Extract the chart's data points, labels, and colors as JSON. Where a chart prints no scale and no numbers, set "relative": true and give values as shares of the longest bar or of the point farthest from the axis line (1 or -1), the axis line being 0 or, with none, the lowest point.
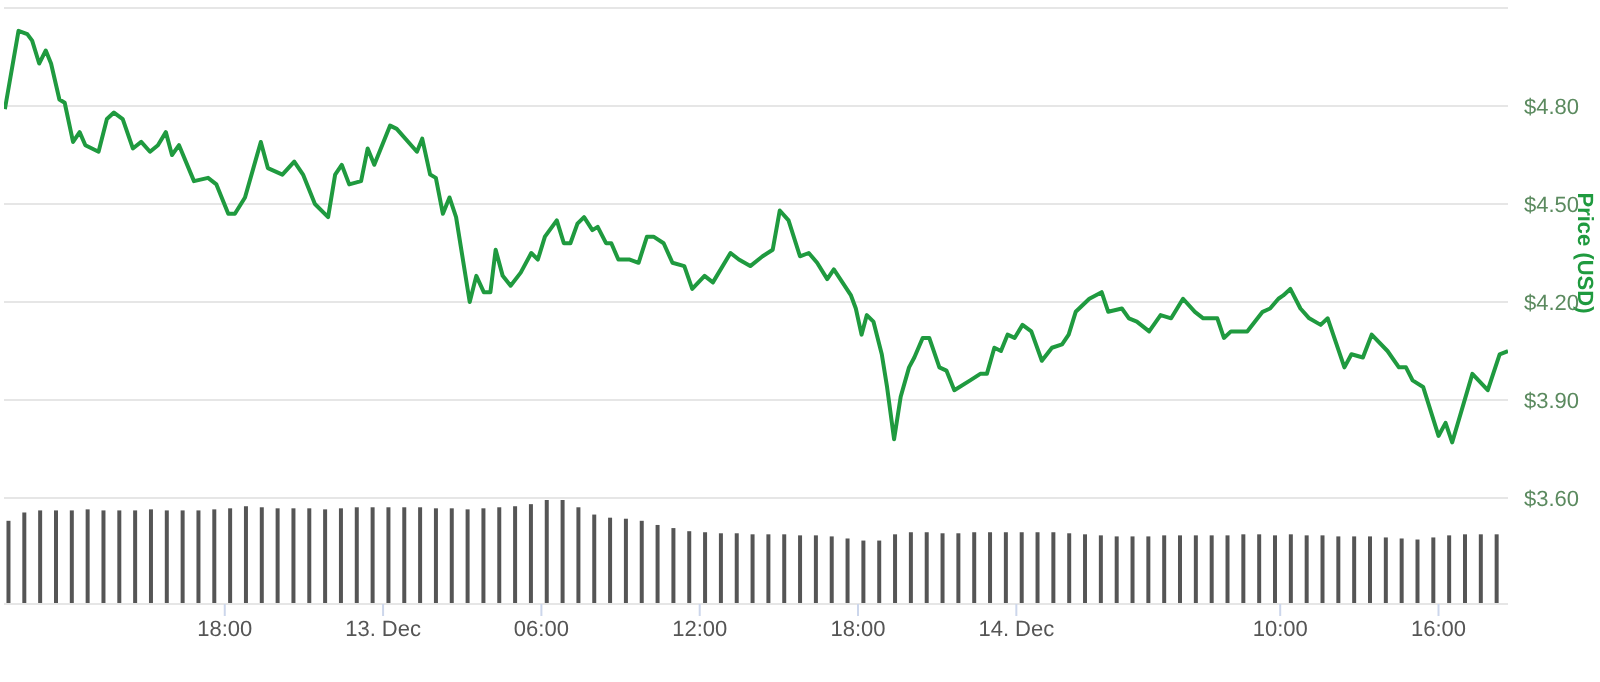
{
  "chart_data": [
    {
      "type": "line",
      "ylabel": "Price (USD)",
      "color": "#1f9a3f",
      "grid": "y",
      "tick_labels": "y",
      "xlim": [
        "--12-12T09:38",
        "--12-14T18:38"
      ],
      "ylim": [
        3.6,
        5.1
      ],
      "yticks": [
        {
          "value": 3.6,
          "label": "$3.60"
        },
        {
          "value": 3.9,
          "label": "$3.90"
        },
        {
          "value": 4.2,
          "label": "$4.20"
        },
        {
          "value": 4.5,
          "label": "$4.50"
        },
        {
          "value": 4.8,
          "label": "$4.80"
        },
        {
          "value": 5.1,
          "label": null
        }
      ],
      "x": [
        "--12-12T09:40",
        "--12-12T10:11",
        "--12-12T10:31",
        "--12-12T10:42",
        "--12-12T10:58",
        "--12-12T11:13",
        "--12-12T11:25",
        "--12-12T11:44",
        "--12-12T11:56",
        "--12-12T12:15",
        "--12-12T12:30",
        "--12-12T12:43",
        "--12-12T13:13",
        "--12-12T13:32",
        "--12-12T13:48",
        "--12-12T14:08",
        "--12-12T14:31",
        "--12-12T14:50",
        "--12-12T15:10",
        "--12-12T15:28",
        "--12-12T15:46",
        "--12-12T16:00",
        "--12-12T16:16",
        "--12-12T16:50",
        "--12-12T17:22",
        "--12-12T17:41",
        "--12-12T18:08",
        "--12-12T18:23",
        "--12-12T18:46",
        "--12-12T19:22",
        "--12-12T19:38",
        "--12-12T20:11",
        "--12-12T20:38",
        "--12-12T20:58",
        "--12-12T21:25",
        "--12-12T21:55",
        "--12-12T22:11",
        "--12-12T22:26",
        "--12-12T22:43",
        "--12-12T23:10",
        "--12-12T23:25",
        "--12-12T23:40",
        "--12-13T00:16",
        "--12-13T00:31",
        "--12-13T01:17",
        "--12-13T01:29",
        "--12-13T01:47",
        "--12-13T02:00",
        "--12-13T02:16",
        "--12-13T02:31",
        "--12-13T02:46",
        "--12-13T03:17",
        "--12-13T03:32",
        "--12-13T03:49",
        "--12-13T04:04",
        "--12-13T04:16",
        "--12-13T04:32",
        "--12-13T04:50",
        "--12-13T05:13",
        "--12-13T05:37",
        "--12-13T05:52",
        "--12-13T06:08",
        "--12-13T06:35",
        "--12-13T06:51",
        "--12-13T07:06",
        "--12-13T07:22",
        "--12-13T07:37",
        "--12-13T07:56",
        "--12-13T08:08",
        "--12-13T08:27",
        "--12-13T08:39",
        "--12-13T08:55",
        "--12-13T09:21",
        "--12-13T09:41",
        "--12-13T10:00",
        "--12-13T10:15",
        "--12-13T10:38",
        "--12-13T10:58",
        "--12-13T11:25",
        "--12-13T11:43",
        "--12-13T12:11",
        "--12-13T12:30",
        "--12-13T13:10",
        "--12-13T13:29",
        "--12-13T13:55",
        "--12-13T14:23",
        "--12-13T14:46",
        "--12-13T15:02",
        "--12-13T15:22",
        "--12-13T15:48",
        "--12-13T16:08",
        "--12-13T16:27",
        "--12-13T16:50",
        "--12-13T17:05",
        "--12-13T17:44",
        "--12-13T17:55",
        "--12-13T18:08",
        "--12-13T18:20",
        "--12-13T18:35",
        "--12-13T18:54",
        "--12-13T19:06",
        "--12-13T19:22",
        "--12-13T19:37",
        "--12-13T19:56",
        "--12-13T20:08",
        "--12-13T20:27",
        "--12-13T20:42",
        "--12-13T21:05",
        "--12-13T21:21",
        "--12-13T21:39",
        "--12-13T22:15",
        "--12-13T22:38",
        "--12-13T22:53",
        "--12-13T23:10",
        "--12-13T23:25",
        "--12-13T23:40",
        "--12-13T23:56",
        "--12-14T00:14",
        "--12-14T00:34",
        "--12-14T00:58",
        "--12-14T01:21",
        "--12-14T01:44",
        "--12-14T01:59",
        "--12-14T02:15",
        "--12-14T02:46",
        "--12-14T03:14",
        "--12-14T03:29",
        "--12-14T04:00",
        "--12-14T04:16",
        "--12-14T04:34",
        "--12-14T05:02",
        "--12-14T05:28",
        "--12-14T05:52",
        "--12-14T06:19",
        "--12-14T06:46",
        "--12-14T07:05",
        "--12-14T07:37",
        "--12-14T07:52",
        "--12-14T08:08",
        "--12-14T08:45",
        "--12-14T09:20",
        "--12-14T09:37",
        "--12-14T09:56",
        "--12-14T10:07",
        "--12-14T10:23",
        "--12-14T10:46",
        "--12-14T11:06",
        "--12-14T11:32",
        "--12-14T11:48",
        "--12-14T12:26",
        "--12-14T12:42",
        "--12-14T13:08",
        "--12-14T13:28",
        "--12-14T14:04",
        "--12-14T14:30",
        "--12-14T14:46",
        "--12-14T15:01",
        "--12-14T15:25",
        "--12-14T16:00",
        "--12-14T16:16",
        "--12-14T16:31",
        "--12-14T17:17",
        "--12-14T17:52",
        "--12-14T18:19",
        "--12-14T18:38"
      ],
      "values": [
        4.79,
        5.03,
        5.02,
        5.0,
        4.93,
        4.97,
        4.93,
        4.82,
        4.81,
        4.69,
        4.72,
        4.68,
        4.66,
        4.76,
        4.78,
        4.76,
        4.67,
        4.69,
        4.66,
        4.68,
        4.72,
        4.65,
        4.68,
        4.57,
        4.58,
        4.56,
        4.47,
        4.47,
        4.52,
        4.69,
        4.61,
        4.59,
        4.63,
        4.59,
        4.5,
        4.46,
        4.59,
        4.62,
        4.56,
        4.57,
        4.67,
        4.62,
        4.74,
        4.73,
        4.66,
        4.7,
        4.59,
        4.58,
        4.47,
        4.52,
        4.46,
        4.2,
        4.28,
        4.23,
        4.23,
        4.36,
        4.28,
        4.25,
        4.29,
        4.35,
        4.33,
        4.4,
        4.45,
        4.38,
        4.38,
        4.44,
        4.46,
        4.42,
        4.43,
        4.38,
        4.38,
        4.33,
        4.33,
        4.32,
        4.4,
        4.4,
        4.38,
        4.32,
        4.31,
        4.24,
        4.28,
        4.26,
        4.35,
        4.33,
        4.31,
        4.34,
        4.36,
        4.48,
        4.45,
        4.34,
        4.35,
        4.32,
        4.27,
        4.3,
        4.22,
        4.18,
        4.1,
        4.16,
        4.14,
        4.04,
        3.94,
        3.78,
        3.91,
        4.0,
        4.03,
        4.09,
        4.09,
        4.0,
        3.99,
        3.93,
        3.96,
        3.98,
        3.98,
        4.06,
        4.05,
        4.1,
        4.09,
        4.13,
        4.11,
        4.02,
        4.06,
        4.07,
        4.1,
        4.17,
        4.21,
        4.23,
        4.17,
        4.18,
        4.15,
        4.14,
        4.11,
        4.16,
        4.15,
        4.21,
        4.17,
        4.15,
        4.15,
        4.09,
        4.11,
        4.11,
        4.17,
        4.18,
        4.21,
        4.22,
        4.24,
        4.18,
        4.15,
        4.13,
        4.15,
        4.0,
        4.04,
        4.03,
        4.1,
        4.05,
        4.0,
        4.0,
        3.96,
        3.94,
        3.79,
        3.83,
        3.77,
        3.98,
        3.93,
        4.04,
        4.05
      ]
    },
    {
      "type": "bar",
      "relative": true,
      "color": "#555555",
      "tick_labels": "x",
      "xlim": [
        "--12-12T09:38",
        "--12-14T18:38"
      ],
      "xticks": [
        {
          "value": "--12-12T18:00",
          "label": "18:00"
        },
        {
          "value": "--12-13T00:00",
          "label": "13. Dec"
        },
        {
          "value": "--12-13T06:00",
          "label": "06:00"
        },
        {
          "value": "--12-13T12:00",
          "label": "12:00"
        },
        {
          "value": "--12-13T18:00",
          "label": "18:00"
        },
        {
          "value": "--12-14T00:00",
          "label": "14. Dec"
        },
        {
          "value": "--12-14T10:00",
          "label": "10:00"
        },
        {
          "value": "--12-14T16:00",
          "label": "16:00"
        }
      ],
      "x": [
        "--12-12T09:48",
        "--12-12T10:24",
        "--12-12T11:00",
        "--12-12T11:36",
        "--12-12T12:12",
        "--12-12T12:48",
        "--12-12T13:24",
        "--12-12T14:00",
        "--12-12T14:36",
        "--12-12T15:12",
        "--12-12T15:48",
        "--12-12T16:24",
        "--12-12T17:00",
        "--12-12T17:36",
        "--12-12T18:12",
        "--12-12T18:48",
        "--12-12T19:24",
        "--12-12T20:00",
        "--12-12T20:36",
        "--12-12T21:12",
        "--12-12T21:48",
        "--12-12T22:24",
        "--12-12T23:00",
        "--12-12T23:36",
        "--12-13T00:12",
        "--12-13T00:48",
        "--12-13T01:24",
        "--12-13T02:00",
        "--12-13T02:36",
        "--12-13T03:12",
        "--12-13T03:48",
        "--12-13T04:24",
        "--12-13T05:00",
        "--12-13T05:36",
        "--12-13T06:12",
        "--12-13T06:48",
        "--12-13T07:24",
        "--12-13T08:00",
        "--12-13T08:36",
        "--12-13T09:12",
        "--12-13T09:48",
        "--12-13T10:24",
        "--12-13T11:00",
        "--12-13T11:36",
        "--12-13T12:12",
        "--12-13T12:48",
        "--12-13T13:24",
        "--12-13T14:00",
        "--12-13T14:36",
        "--12-13T15:12",
        "--12-13T15:48",
        "--12-13T16:24",
        "--12-13T17:00",
        "--12-13T17:36",
        "--12-13T18:12",
        "--12-13T18:48",
        "--12-13T19:24",
        "--12-13T20:00",
        "--12-13T20:36",
        "--12-13T21:12",
        "--12-13T21:48",
        "--12-13T22:24",
        "--12-13T23:00",
        "--12-13T23:36",
        "--12-14T00:12",
        "--12-14T00:48",
        "--12-14T01:24",
        "--12-14T02:00",
        "--12-14T02:36",
        "--12-14T03:12",
        "--12-14T03:48",
        "--12-14T04:24",
        "--12-14T05:00",
        "--12-14T05:36",
        "--12-14T06:12",
        "--12-14T06:48",
        "--12-14T07:24",
        "--12-14T08:00",
        "--12-14T08:36",
        "--12-14T09:12",
        "--12-14T09:48",
        "--12-14T10:24",
        "--12-14T11:00",
        "--12-14T11:36",
        "--12-14T12:12",
        "--12-14T12:48",
        "--12-14T13:24",
        "--12-14T14:00",
        "--12-14T14:36",
        "--12-14T15:12",
        "--12-14T15:48",
        "--12-14T16:24",
        "--12-14T17:00",
        "--12-14T17:36",
        "--12-14T18:12"
      ],
      "values": [
        0.8,
        0.88,
        0.9,
        0.9,
        0.9,
        0.91,
        0.9,
        0.9,
        0.9,
        0.91,
        0.9,
        0.9,
        0.9,
        0.91,
        0.92,
        0.94,
        0.93,
        0.92,
        0.92,
        0.92,
        0.91,
        0.92,
        0.93,
        0.93,
        0.93,
        0.93,
        0.93,
        0.92,
        0.92,
        0.91,
        0.92,
        0.93,
        0.94,
        0.96,
        1.0,
        1.0,
        0.93,
        0.86,
        0.83,
        0.82,
        0.8,
        0.76,
        0.73,
        0.7,
        0.69,
        0.68,
        0.68,
        0.67,
        0.67,
        0.67,
        0.66,
        0.66,
        0.65,
        0.63,
        0.61,
        0.61,
        0.67,
        0.69,
        0.69,
        0.68,
        0.68,
        0.69,
        0.69,
        0.69,
        0.69,
        0.69,
        0.69,
        0.68,
        0.67,
        0.66,
        0.65,
        0.65,
        0.65,
        0.66,
        0.66,
        0.66,
        0.66,
        0.66,
        0.67,
        0.67,
        0.66,
        0.67,
        0.66,
        0.66,
        0.65,
        0.65,
        0.65,
        0.64,
        0.63,
        0.62,
        0.64,
        0.66,
        0.67,
        0.67,
        0.67
      ]
    }
  ]
}
